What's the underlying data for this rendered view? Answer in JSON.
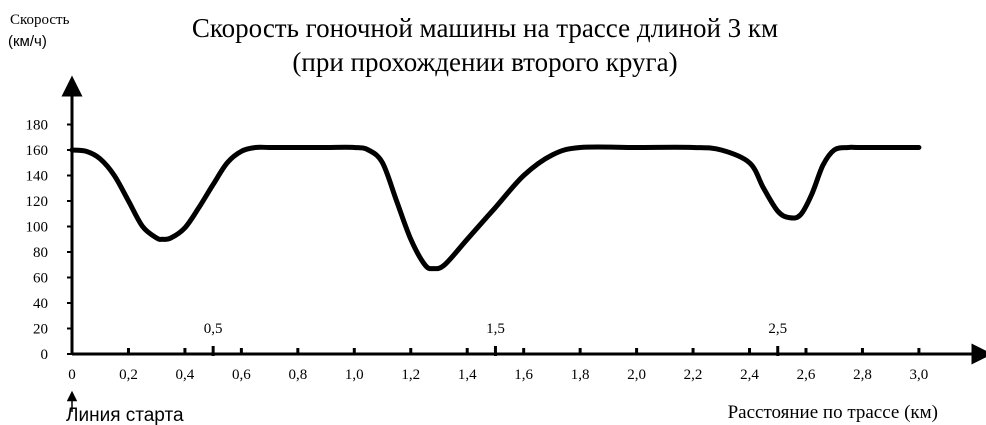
{
  "chart_data": {
    "type": "line",
    "title": "Скорость гоночной машины на трассе длиной 3 км",
    "subtitle": "(при прохождении второго круга)",
    "ylabel_line1": "Скорость",
    "ylabel_line2": "(км/ч)",
    "xlabel": "Расстояние по трассе (км)",
    "start_label": "Линия старта",
    "xlim": [
      0,
      3.2
    ],
    "ylim": [
      0,
      190
    ],
    "x_ticks": [
      0,
      0.2,
      0.4,
      0.6,
      0.8,
      1.0,
      1.2,
      1.4,
      1.6,
      1.8,
      2.0,
      2.2,
      2.4,
      2.6,
      2.8,
      3.0
    ],
    "x_tick_labels": [
      "0",
      "0,2",
      "0,4",
      "0,6",
      "0,8",
      "1,0",
      "1,2",
      "1,4",
      "1,6",
      "1,8",
      "2,0",
      "2,2",
      "2,4",
      "2,6",
      "2,8",
      "3,0"
    ],
    "y_ticks": [
      0,
      20,
      40,
      60,
      80,
      100,
      120,
      140,
      160,
      180
    ],
    "y_tick_labels": [
      "0",
      "20",
      "40",
      "60",
      "80",
      "100",
      "120",
      "140",
      "160",
      "180"
    ],
    "extra_ticks": [
      0.5,
      1.5,
      2.5
    ],
    "extra_tick_labels": [
      "0,5",
      "1,5",
      "2,5"
    ],
    "grid": false,
    "series": [
      {
        "x": [
          0,
          0.05,
          0.1,
          0.15,
          0.2,
          0.25,
          0.3,
          0.32,
          0.35,
          0.4,
          0.45,
          0.5,
          0.55,
          0.6,
          0.65,
          0.7,
          0.8,
          0.9,
          1.0,
          1.05,
          1.1,
          1.15,
          1.2,
          1.25,
          1.28,
          1.32,
          1.4,
          1.5,
          1.6,
          1.7,
          1.8,
          2.0,
          2.2,
          2.3,
          2.4,
          2.45,
          2.5,
          2.54,
          2.58,
          2.62,
          2.66,
          2.7,
          2.75,
          2.8,
          3.0
        ],
        "y": [
          160,
          159,
          153,
          140,
          120,
          100,
          91,
          90,
          91,
          99,
          115,
          133,
          150,
          159,
          162,
          162,
          162,
          162,
          162,
          160,
          150,
          120,
          90,
          70,
          67,
          70,
          90,
          115,
          140,
          156,
          162,
          162,
          162,
          160,
          150,
          130,
          112,
          107,
          109,
          125,
          148,
          160,
          162,
          162,
          162
        ]
      }
    ]
  }
}
